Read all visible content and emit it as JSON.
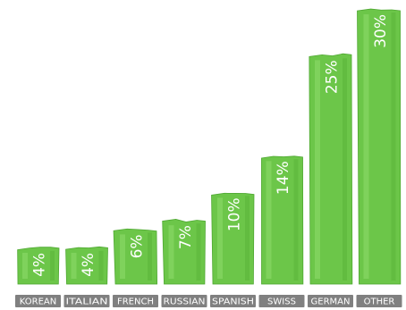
{
  "chart_data": {
    "type": "bar",
    "title": "",
    "xlabel": "",
    "ylabel": "",
    "ylim": [
      0,
      30
    ],
    "grid": false,
    "legend": "none",
    "categories": [
      "KOREAN",
      "ITALIAN",
      "FRENCH",
      "RUSSIAN",
      "SPANISH",
      "SWISS",
      "GERMAN",
      "OTHER"
    ],
    "values": [
      4,
      4,
      6,
      7,
      10,
      14,
      25,
      30
    ],
    "data_labels": [
      "4%",
      "4%",
      "6%",
      "7%",
      "10%",
      "14%",
      "25%",
      "30%"
    ],
    "colors": {
      "bar_fill": "#6cc649",
      "bar_highlight": "#8fdc6c",
      "bar_shadow": "#4fa832",
      "category_tag": "#808080",
      "label_text": "#ffffff"
    }
  }
}
